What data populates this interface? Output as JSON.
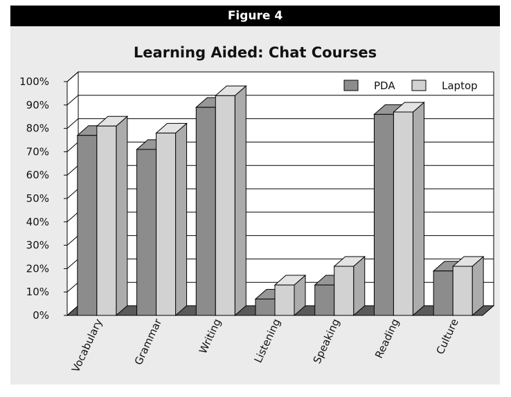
{
  "figure_label": "Figure 4",
  "chart_data": {
    "type": "bar",
    "title": "Learning Aided: Chat Courses",
    "xlabel": "",
    "ylabel": "",
    "categories": [
      "Vocabulary",
      "Grammar",
      "Writing",
      "Listening",
      "Speaking",
      "Reading",
      "Culture"
    ],
    "series": [
      {
        "name": "PDA",
        "color": "#8c8c8c",
        "values": [
          77,
          71,
          89,
          7,
          13,
          86,
          19
        ]
      },
      {
        "name": "Laptop",
        "color": "#d2d2d2",
        "values": [
          81,
          78,
          94,
          13,
          21,
          87,
          21
        ]
      }
    ],
    "ylim": [
      0,
      100
    ],
    "yticks": [
      0,
      10,
      20,
      30,
      40,
      50,
      60,
      70,
      80,
      90,
      100
    ],
    "ytick_suffix": "%",
    "grid": true,
    "legend_position": "top-right",
    "style": "3d"
  }
}
